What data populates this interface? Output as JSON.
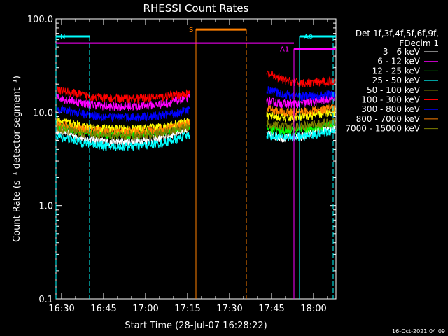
{
  "page": {
    "stamp": "16-Oct-2021 04:09"
  },
  "chart_data": {
    "type": "line",
    "title": "RHESSI Count Rates",
    "xlabel": "Start Time (28-Jul-07 16:28:22)",
    "ylabel": "Count Rate (s⁻¹ detector segment⁻¹)",
    "yscale": "log",
    "ylim": [
      0.1,
      100.0
    ],
    "xlim": [
      "16:28",
      "18:08"
    ],
    "x_ticks": [
      "16:30",
      "16:45",
      "17:00",
      "17:15",
      "17:30",
      "17:45",
      "18:00"
    ],
    "y_ticks": [
      "0.1",
      "1.0",
      "10.0",
      "100.0"
    ],
    "legend": {
      "position": "right",
      "header": [
        "Det 1f,3f,4f,5f,6f,9f,",
        "FDecim 1"
      ]
    },
    "gap": [
      "17:16",
      "17:43"
    ],
    "series": [
      {
        "name": "3 - 6 keV",
        "color": "#ffffff",
        "segment1": [
          6.5,
          5.2,
          4.8,
          4.9,
          5.3,
          6.8
        ],
        "segment2": [
          5.8,
          5.3,
          5.5,
          6.3,
          7.0
        ]
      },
      {
        "name": "6 - 12 keV",
        "color": "#ff00ff",
        "segment1": [
          14.5,
          12.5,
          11.5,
          11.6,
          12.3,
          14.2
        ],
        "segment2": [
          13.2,
          12.3,
          12.4,
          13.2,
          14.3
        ]
      },
      {
        "name": "12 - 25 keV",
        "color": "#00ff00",
        "segment1": [
          7.2,
          6.2,
          5.8,
          5.8,
          6.2,
          7.3
        ],
        "segment2": [
          6.8,
          6.3,
          6.4,
          7.0,
          7.6
        ]
      },
      {
        "name": "25 - 50 keV",
        "color": "#00ffff",
        "segment1": [
          5.6,
          4.7,
          4.3,
          4.3,
          4.7,
          5.7
        ],
        "segment2": [
          5.7,
          5.4,
          5.5,
          5.9,
          6.4
        ]
      },
      {
        "name": "50 - 100 keV",
        "color": "#ffff00",
        "segment1": [
          8.2,
          7.1,
          6.6,
          6.6,
          7.0,
          8.0
        ],
        "segment2": [
          9.3,
          8.7,
          8.8,
          9.5,
          10.2
        ]
      },
      {
        "name": "100 - 300 keV",
        "color": "#ff0000",
        "segment1": [
          17.5,
          15.2,
          14.0,
          14.0,
          14.6,
          16.0
        ],
        "segment2": [
          26.0,
          22.0,
          20.5,
          20.8,
          22.0
        ]
      },
      {
        "name": "300 - 800 keV",
        "color": "#0000ff",
        "segment1": [
          11.0,
          9.6,
          8.9,
          8.9,
          9.3,
          10.5
        ],
        "segment2": [
          17.5,
          15.5,
          14.8,
          15.0,
          15.8
        ]
      },
      {
        "name": "800 - 7000 keV",
        "color": "#ff8000",
        "segment1": [
          7.5,
          6.6,
          6.2,
          6.2,
          6.6,
          7.6
        ],
        "segment2": [
          10.8,
          10.0,
          10.1,
          10.6,
          11.2
        ]
      },
      {
        "name": "7000 - 15000 keV",
        "color": "#808000",
        "segment1": [
          6.8,
          6.0,
          5.6,
          5.6,
          6.0,
          7.0
        ],
        "segment2": [
          7.6,
          7.0,
          7.1,
          7.5,
          8.0
        ]
      }
    ],
    "flags": [
      {
        "label": "N",
        "color": "#00ffff",
        "bar_x": [
          "16:28",
          "16:40"
        ],
        "bar_y": 65.0,
        "lines_x": [
          "16:28",
          "16:40"
        ],
        "line_style": "dashed"
      },
      {
        "label": "S",
        "color": "#ff8000",
        "bar_x": [
          "17:18",
          "17:36"
        ],
        "bar_y": 77.0,
        "lines_x": [
          "17:18",
          "17:36"
        ],
        "line_style": "solid-dashed"
      },
      {
        "label": "A0",
        "color": "#00ffff",
        "bar_x": [
          "17:55",
          "18:08"
        ],
        "bar_y": 65.0,
        "lines_x": [
          "17:55",
          "18:07"
        ],
        "line_style": "solid-dashed"
      },
      {
        "label": "A1",
        "color": "#ff00ff",
        "bar_x": [
          "17:53",
          "18:08"
        ],
        "bar_y": 48.0,
        "lines_x": [
          "17:53"
        ],
        "line_style": "solid"
      }
    ],
    "attenuator_line": {
      "color": "#ff00ff",
      "x": [
        "16:28",
        "17:53"
      ],
      "y": 55.0
    }
  }
}
